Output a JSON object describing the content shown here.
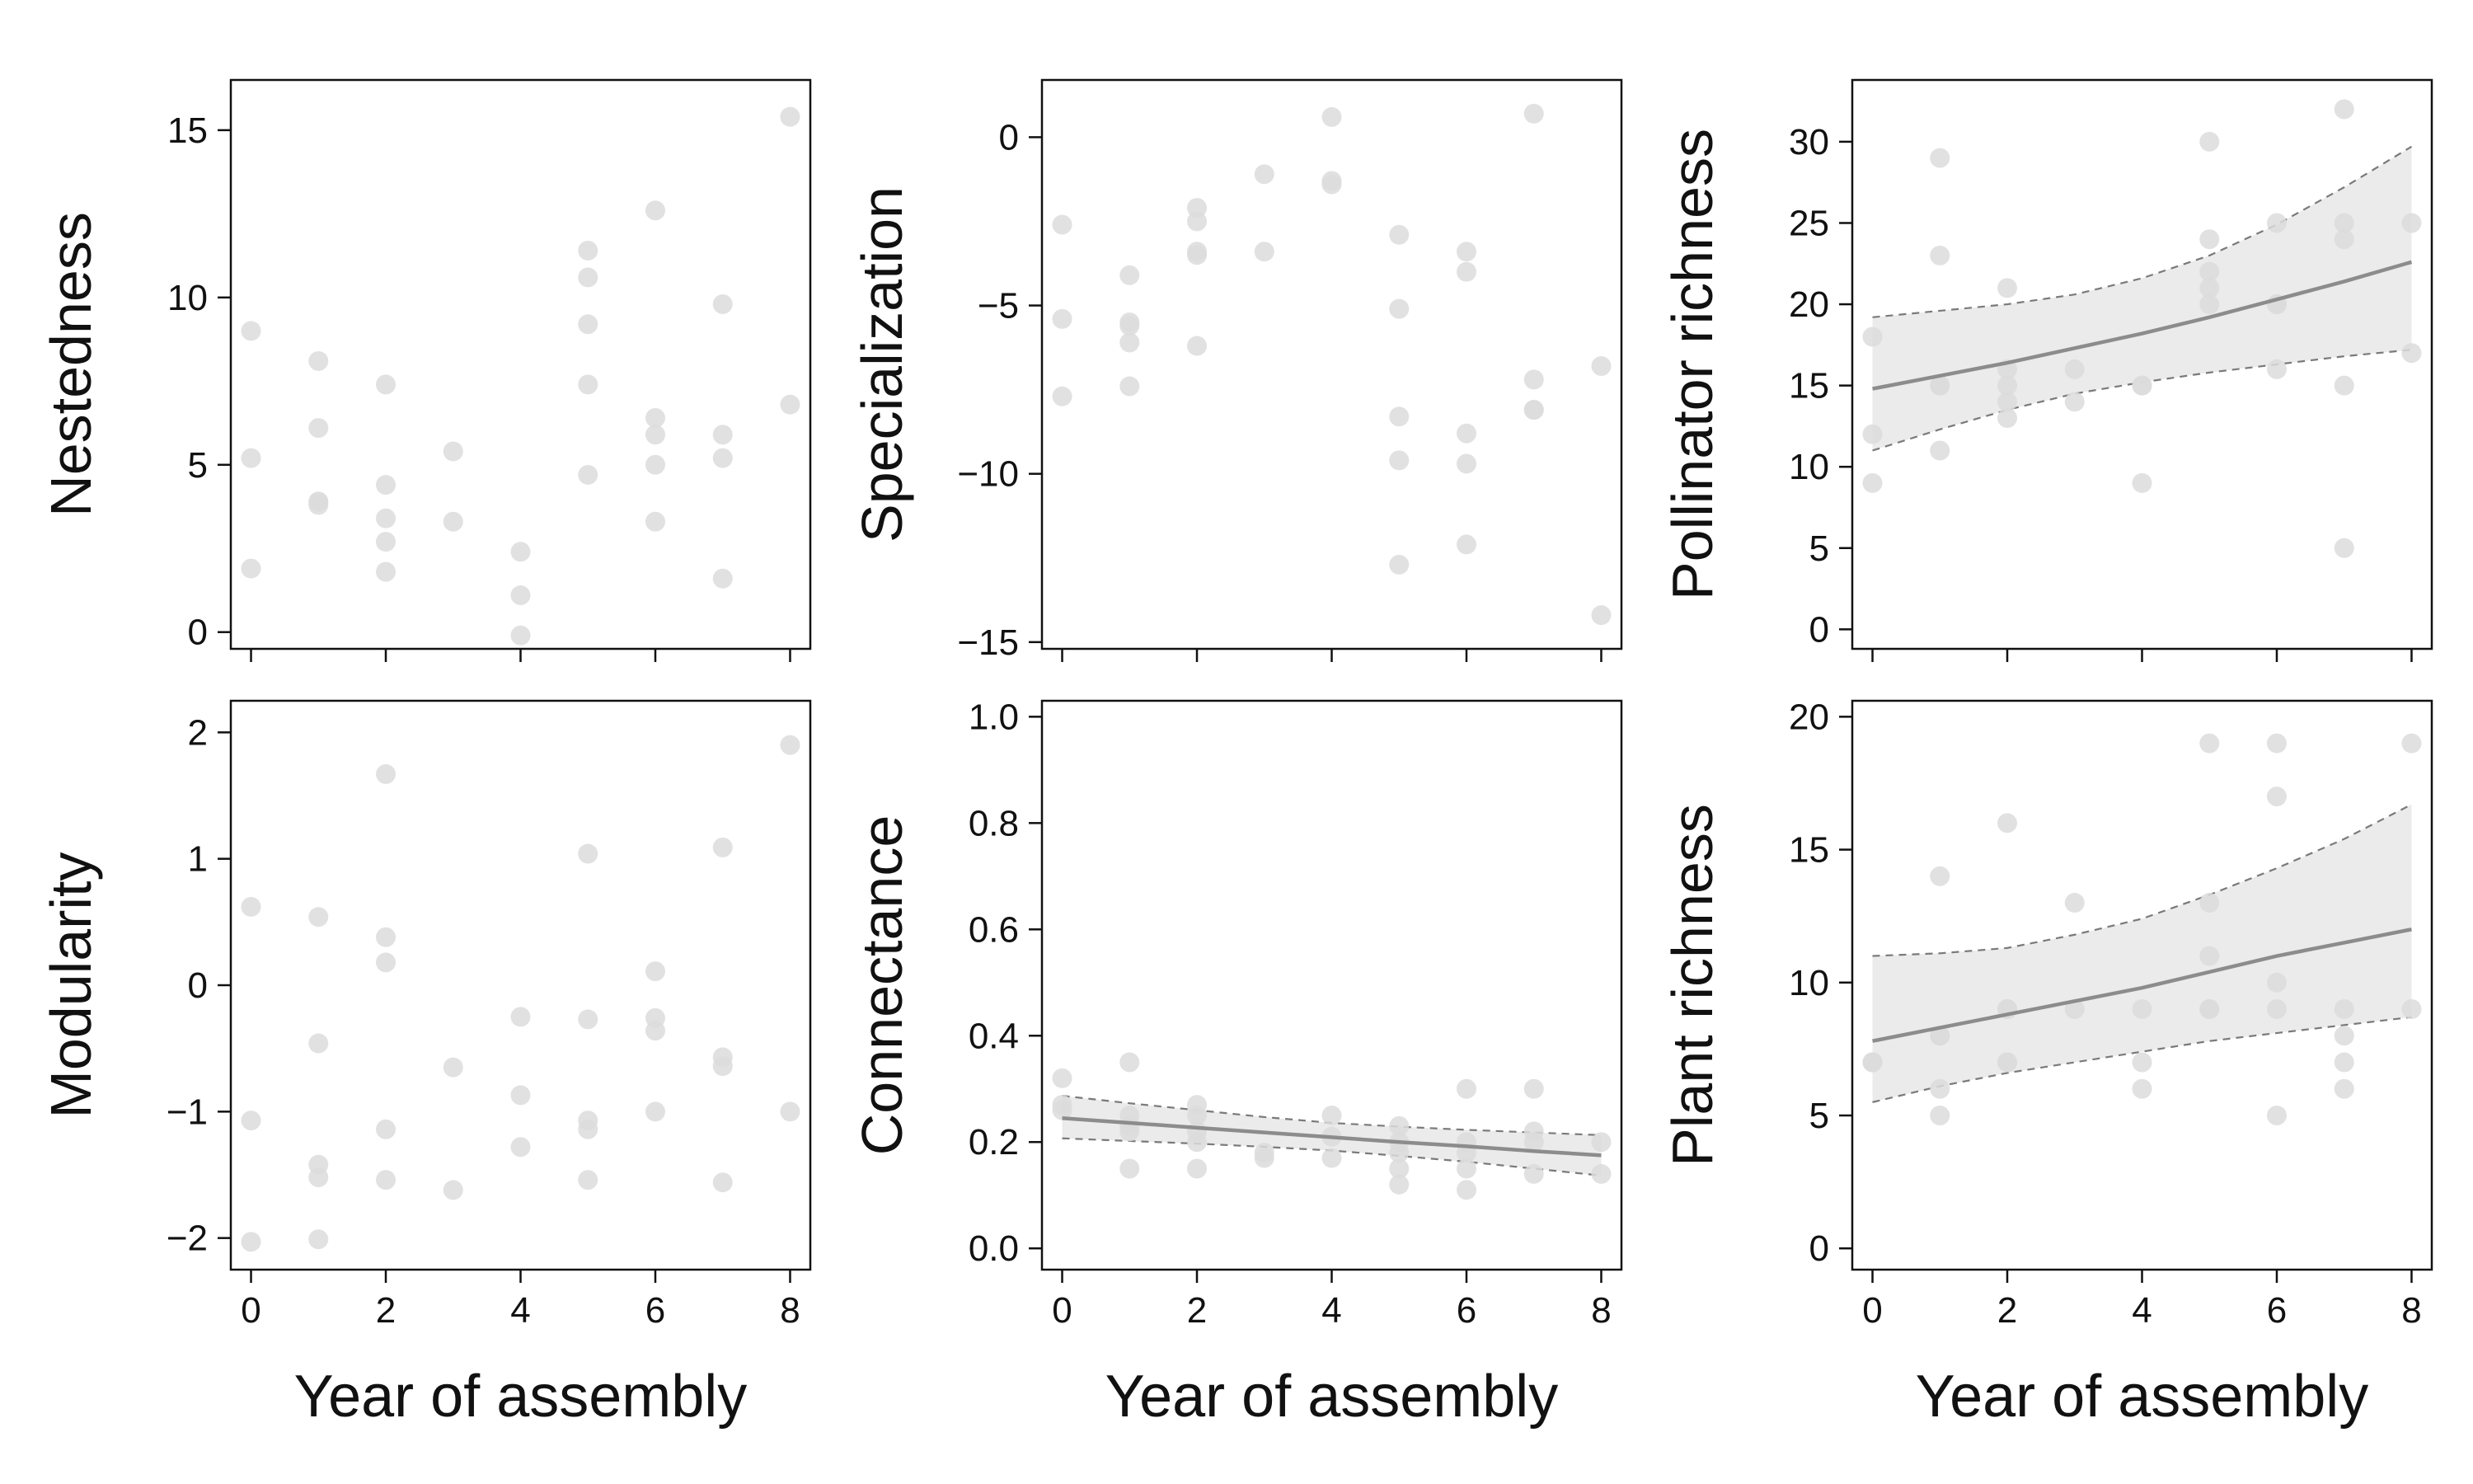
{
  "chart_data": [
    {
      "type": "scatter",
      "ylabel": "Nestedness",
      "xlabel": "",
      "xlim": [
        -0.3,
        8.3
      ],
      "ylim": [
        -0.5,
        16.5
      ],
      "xticks": [
        "0",
        "2",
        "4",
        "6",
        "8"
      ],
      "yticks": [
        "0",
        "5",
        "10",
        "15"
      ],
      "points": [
        [
          0,
          9.0
        ],
        [
          0,
          5.2
        ],
        [
          0,
          1.9
        ],
        [
          1,
          8.1
        ],
        [
          1,
          6.1
        ],
        [
          1,
          3.9
        ],
        [
          1,
          3.9
        ],
        [
          1,
          3.8
        ],
        [
          2,
          7.4
        ],
        [
          2,
          4.4
        ],
        [
          2,
          3.4
        ],
        [
          2,
          2.7
        ],
        [
          2,
          1.8
        ],
        [
          3,
          5.4
        ],
        [
          3,
          3.3
        ],
        [
          4,
          2.4
        ],
        [
          4,
          1.1
        ],
        [
          4,
          -0.1
        ],
        [
          5,
          11.4
        ],
        [
          5,
          10.6
        ],
        [
          5,
          9.2
        ],
        [
          5,
          7.4
        ],
        [
          5,
          4.7
        ],
        [
          6,
          12.6
        ],
        [
          6,
          6.4
        ],
        [
          6,
          5.9
        ],
        [
          6,
          5.0
        ],
        [
          6,
          3.3
        ],
        [
          7,
          9.8
        ],
        [
          7,
          5.9
        ],
        [
          7,
          5.2
        ],
        [
          7,
          1.6
        ],
        [
          8,
          15.4
        ],
        [
          8,
          6.8
        ]
      ],
      "fit": null
    },
    {
      "type": "scatter",
      "ylabel": "Specialization",
      "xlabel": "",
      "xlim": [
        -0.3,
        8.3
      ],
      "ylim": [
        -15.2,
        1.7
      ],
      "xticks": [
        "0",
        "2",
        "4",
        "6",
        "8"
      ],
      "yticks": [
        "0",
        "−5",
        "−10",
        "−15"
      ],
      "points": [
        [
          0,
          -2.6
        ],
        [
          0,
          -5.4
        ],
        [
          0,
          -7.7
        ],
        [
          1,
          -4.1
        ],
        [
          1,
          -5.5
        ],
        [
          1,
          -5.6
        ],
        [
          1,
          -6.1
        ],
        [
          1,
          -7.4
        ],
        [
          2,
          -2.1
        ],
        [
          2,
          -2.5
        ],
        [
          2,
          -3.4
        ],
        [
          2,
          -3.5
        ],
        [
          2,
          -6.2
        ],
        [
          3,
          -1.1
        ],
        [
          3,
          -3.4
        ],
        [
          4,
          0.6
        ],
        [
          4,
          -1.4
        ],
        [
          4,
          -1.3
        ],
        [
          5,
          -2.9
        ],
        [
          5,
          -5.1
        ],
        [
          5,
          -8.3
        ],
        [
          5,
          -9.6
        ],
        [
          5,
          -12.7
        ],
        [
          6,
          -3.4
        ],
        [
          6,
          -4.0
        ],
        [
          6,
          -8.8
        ],
        [
          6,
          -9.7
        ],
        [
          6,
          -12.1
        ],
        [
          7,
          0.7
        ],
        [
          7,
          -7.2
        ],
        [
          7,
          -8.1
        ],
        [
          7,
          -8.1
        ],
        [
          8,
          -6.8
        ],
        [
          8,
          -14.2
        ]
      ],
      "fit": null
    },
    {
      "type": "scatter",
      "ylabel": "Pollinator richness",
      "xlabel": "",
      "xlim": [
        -0.3,
        8.3
      ],
      "ylim": [
        -1.2,
        33.8
      ],
      "xticks": [
        "0",
        "2",
        "4",
        "6",
        "8"
      ],
      "yticks": [
        "0",
        "5",
        "10",
        "15",
        "20",
        "25",
        "30"
      ],
      "points": [
        [
          0,
          18
        ],
        [
          0,
          12
        ],
        [
          0,
          9
        ],
        [
          1,
          29
        ],
        [
          1,
          23
        ],
        [
          1,
          15
        ],
        [
          1,
          15
        ],
        [
          1,
          11
        ],
        [
          2,
          21
        ],
        [
          2,
          16
        ],
        [
          2,
          15
        ],
        [
          2,
          14
        ],
        [
          2,
          13
        ],
        [
          3,
          16
        ],
        [
          3,
          14
        ],
        [
          4,
          15
        ],
        [
          4,
          15
        ],
        [
          4,
          9
        ],
        [
          5,
          30
        ],
        [
          5,
          24
        ],
        [
          5,
          22
        ],
        [
          5,
          21
        ],
        [
          5,
          20
        ],
        [
          6,
          25
        ],
        [
          6,
          20
        ],
        [
          6,
          20
        ],
        [
          6,
          16
        ],
        [
          7,
          32
        ],
        [
          7,
          25
        ],
        [
          7,
          24
        ],
        [
          7,
          15
        ],
        [
          7,
          5
        ],
        [
          8,
          25
        ],
        [
          8,
          17
        ]
      ],
      "fit": {
        "x": [
          0,
          1,
          2,
          3,
          4,
          5,
          6,
          7,
          8
        ],
        "mean": [
          14.8,
          15.6,
          16.4,
          17.3,
          18.2,
          19.2,
          20.3,
          21.4,
          22.6
        ],
        "lower": [
          11.0,
          12.3,
          13.5,
          14.5,
          15.2,
          15.8,
          16.3,
          16.8,
          17.2
        ],
        "upper": [
          19.2,
          19.6,
          20.0,
          20.6,
          21.6,
          23.0,
          24.9,
          27.2,
          29.7
        ]
      }
    },
    {
      "type": "scatter",
      "ylabel": "Modularity",
      "xlabel": "Year of assembly",
      "xlim": [
        -0.3,
        8.3
      ],
      "ylim": [
        -2.25,
        2.25
      ],
      "xticks": [
        "0",
        "2",
        "4",
        "6",
        "8"
      ],
      "yticks": [
        "−2",
        "−1",
        "0",
        "1",
        "2"
      ],
      "points": [
        [
          0,
          0.62
        ],
        [
          0,
          -1.07
        ],
        [
          0,
          -2.03
        ],
        [
          1,
          0.54
        ],
        [
          1,
          -0.46
        ],
        [
          1,
          -1.42
        ],
        [
          1,
          -1.52
        ],
        [
          1,
          -2.01
        ],
        [
          2,
          1.67
        ],
        [
          2,
          0.38
        ],
        [
          2,
          0.18
        ],
        [
          2,
          -1.14
        ],
        [
          2,
          -1.54
        ],
        [
          3,
          -0.65
        ],
        [
          3,
          -1.62
        ],
        [
          4,
          -0.25
        ],
        [
          4,
          -0.87
        ],
        [
          4,
          -1.28
        ],
        [
          5,
          1.04
        ],
        [
          5,
          -0.27
        ],
        [
          5,
          -1.07
        ],
        [
          5,
          -1.14
        ],
        [
          5,
          -1.54
        ],
        [
          6,
          0.11
        ],
        [
          6,
          -0.26
        ],
        [
          6,
          -0.36
        ],
        [
          6,
          -1.0
        ],
        [
          7,
          1.09
        ],
        [
          7,
          -0.57
        ],
        [
          7,
          -0.64
        ],
        [
          7,
          -1.56
        ],
        [
          8,
          1.9
        ],
        [
          8,
          -1.0
        ]
      ],
      "fit": null
    },
    {
      "type": "scatter",
      "ylabel": "Connectance",
      "xlabel": "Year of assembly",
      "xlim": [
        -0.3,
        8.3
      ],
      "ylim": [
        -0.04,
        1.03
      ],
      "xticks": [
        "0",
        "2",
        "4",
        "6",
        "8"
      ],
      "yticks": [
        "0.0",
        "0.2",
        "0.4",
        "0.6",
        "0.8",
        "1.0"
      ],
      "points": [
        [
          0,
          0.32
        ],
        [
          0,
          0.27
        ],
        [
          0,
          0.26
        ],
        [
          1,
          0.35
        ],
        [
          1,
          0.25
        ],
        [
          1,
          0.23
        ],
        [
          1,
          0.22
        ],
        [
          1,
          0.15
        ],
        [
          2,
          0.27
        ],
        [
          2,
          0.25
        ],
        [
          2,
          0.22
        ],
        [
          2,
          0.2
        ],
        [
          2,
          0.15
        ],
        [
          3,
          0.18
        ],
        [
          3,
          0.17
        ],
        [
          4,
          0.25
        ],
        [
          4,
          0.21
        ],
        [
          4,
          0.17
        ],
        [
          5,
          0.23
        ],
        [
          5,
          0.2
        ],
        [
          5,
          0.18
        ],
        [
          5,
          0.15
        ],
        [
          5,
          0.12
        ],
        [
          6,
          0.3
        ],
        [
          6,
          0.2
        ],
        [
          6,
          0.18
        ],
        [
          6,
          0.15
        ],
        [
          6,
          0.11
        ],
        [
          7,
          0.3
        ],
        [
          7,
          0.22
        ],
        [
          7,
          0.2
        ],
        [
          7,
          0.14
        ],
        [
          8,
          0.2
        ],
        [
          8,
          0.14
        ]
      ],
      "fit": {
        "x": [
          0,
          1,
          2,
          3,
          4,
          5,
          6,
          7,
          8
        ],
        "mean": [
          0.245,
          0.236,
          0.227,
          0.218,
          0.209,
          0.2,
          0.192,
          0.183,
          0.175
        ],
        "lower": [
          0.207,
          0.202,
          0.197,
          0.191,
          0.184,
          0.174,
          0.163,
          0.15,
          0.137
        ],
        "upper": [
          0.287,
          0.273,
          0.26,
          0.247,
          0.236,
          0.229,
          0.223,
          0.218,
          0.213
        ]
      }
    },
    {
      "type": "scatter",
      "ylabel": "Plant richness",
      "xlabel": "Year of assembly",
      "xlim": [
        -0.3,
        8.3
      ],
      "ylim": [
        -0.8,
        20.6
      ],
      "xticks": [
        "0",
        "2",
        "4",
        "6",
        "8"
      ],
      "yticks": [
        "0",
        "5",
        "10",
        "15",
        "20"
      ],
      "points": [
        [
          0,
          7
        ],
        [
          0,
          7
        ],
        [
          0,
          7
        ],
        [
          1,
          14
        ],
        [
          1,
          8
        ],
        [
          1,
          8
        ],
        [
          1,
          6
        ],
        [
          1,
          5
        ],
        [
          2,
          16
        ],
        [
          2,
          9
        ],
        [
          2,
          9
        ],
        [
          2,
          7
        ],
        [
          2,
          7
        ],
        [
          3,
          13
        ],
        [
          3,
          9
        ],
        [
          4,
          9
        ],
        [
          4,
          7
        ],
        [
          4,
          6
        ],
        [
          5,
          19
        ],
        [
          5,
          13
        ],
        [
          5,
          11
        ],
        [
          5,
          9
        ],
        [
          5,
          9
        ],
        [
          6,
          19
        ],
        [
          6,
          17
        ],
        [
          6,
          10
        ],
        [
          6,
          9
        ],
        [
          6,
          5
        ],
        [
          7,
          9
        ],
        [
          7,
          8
        ],
        [
          7,
          7
        ],
        [
          7,
          6
        ],
        [
          8,
          19
        ],
        [
          8,
          9
        ]
      ],
      "fit": {
        "x": [
          0,
          1,
          2,
          3,
          4,
          5,
          6,
          7,
          8
        ],
        "mean": [
          7.8,
          8.3,
          8.8,
          9.3,
          9.8,
          10.4,
          11.0,
          11.5,
          12.0
        ],
        "lower": [
          5.5,
          6.1,
          6.6,
          7.0,
          7.4,
          7.8,
          8.1,
          8.4,
          8.7
        ],
        "upper": [
          11.0,
          11.1,
          11.3,
          11.8,
          12.4,
          13.3,
          14.3,
          15.4,
          16.7
        ]
      }
    }
  ],
  "colors": {
    "point": "#dcdcdc",
    "fit_line": "#8c8c8c",
    "ci_band": "#ebebeb",
    "ci_border": "#7a7a7a",
    "axis": "#111111"
  }
}
